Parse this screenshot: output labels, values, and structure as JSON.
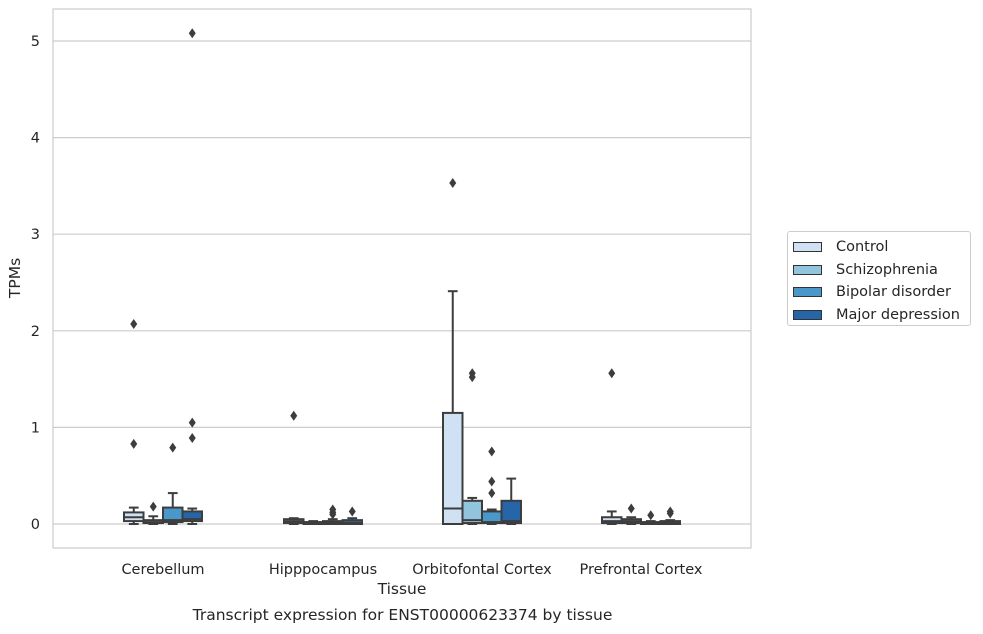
{
  "chart_data": {
    "type": "box",
    "title": "",
    "caption": "Transcript expression for ENST00000623374 by tissue",
    "xlabel": "Tissue",
    "ylabel": "TPMs",
    "ylim": [
      -0.25,
      5.33
    ],
    "yticks": [
      "0",
      "1",
      "2",
      "3",
      "4",
      "5"
    ],
    "grid": "horizontal",
    "legend_placement": "right",
    "categories": [
      "Cerebellum",
      "Hipppocampus",
      "Orbitofontal Cortex",
      "Prefrontal Cortex"
    ],
    "series": [
      {
        "name": "Control",
        "color": "#cfe1f2",
        "boxes": [
          {
            "q1": 0.03,
            "median": 0.07,
            "q3": 0.12,
            "whisker_low": 0.0,
            "whisker_high": 0.17,
            "outliers": [
              2.07,
              0.83
            ]
          },
          {
            "q1": 0.01,
            "median": 0.03,
            "q3": 0.05,
            "whisker_low": 0.0,
            "whisker_high": 0.06,
            "outliers": [
              1.12
            ]
          },
          {
            "q1": 0.0,
            "median": 0.16,
            "q3": 1.15,
            "whisker_low": 0.0,
            "whisker_high": 2.41,
            "outliers": [
              3.53
            ]
          },
          {
            "q1": 0.01,
            "median": 0.03,
            "q3": 0.07,
            "whisker_low": 0.0,
            "whisker_high": 0.13,
            "outliers": [
              1.56
            ]
          }
        ]
      },
      {
        "name": "Schizophrenia",
        "color": "#93c4de",
        "boxes": [
          {
            "q1": 0.01,
            "median": 0.02,
            "q3": 0.04,
            "whisker_low": 0.0,
            "whisker_high": 0.08,
            "outliers": [
              0.18
            ]
          },
          {
            "q1": 0.0,
            "median": 0.01,
            "q3": 0.02,
            "whisker_low": 0.0,
            "whisker_high": 0.03,
            "outliers": []
          },
          {
            "q1": 0.01,
            "median": 0.04,
            "q3": 0.24,
            "whisker_low": 0.0,
            "whisker_high": 0.27,
            "outliers": [
              1.56,
              1.52
            ]
          },
          {
            "q1": 0.01,
            "median": 0.03,
            "q3": 0.05,
            "whisker_low": 0.0,
            "whisker_high": 0.07,
            "outliers": [
              0.16
            ]
          }
        ]
      },
      {
        "name": "Bipolar disorder",
        "color": "#4a98c9",
        "boxes": [
          {
            "q1": 0.02,
            "median": 0.04,
            "q3": 0.17,
            "whisker_low": 0.0,
            "whisker_high": 0.32,
            "outliers": [
              0.79
            ]
          },
          {
            "q1": 0.0,
            "median": 0.01,
            "q3": 0.03,
            "whisker_low": 0.0,
            "whisker_high": 0.05,
            "outliers": [
              0.15,
              0.12,
              0.1
            ]
          },
          {
            "q1": 0.01,
            "median": 0.02,
            "q3": 0.13,
            "whisker_low": 0.0,
            "whisker_high": 0.15,
            "outliers": [
              0.75,
              0.44,
              0.32
            ]
          },
          {
            "q1": 0.0,
            "median": 0.01,
            "q3": 0.02,
            "whisker_low": 0.0,
            "whisker_high": 0.03,
            "outliers": [
              0.09
            ]
          }
        ]
      },
      {
        "name": "Major depression",
        "color": "#2565a8",
        "boxes": [
          {
            "q1": 0.03,
            "median": 0.05,
            "q3": 0.13,
            "whisker_low": 0.0,
            "whisker_high": 0.16,
            "outliers": [
              5.08,
              1.05,
              0.89
            ]
          },
          {
            "q1": 0.0,
            "median": 0.01,
            "q3": 0.04,
            "whisker_low": 0.0,
            "whisker_high": 0.06,
            "outliers": [
              0.13
            ]
          },
          {
            "q1": 0.01,
            "median": 0.03,
            "q3": 0.24,
            "whisker_low": 0.0,
            "whisker_high": 0.47,
            "outliers": []
          },
          {
            "q1": 0.0,
            "median": 0.01,
            "q3": 0.03,
            "whisker_low": 0.0,
            "whisker_high": 0.04,
            "outliers": [
              0.13,
              0.11
            ]
          }
        ]
      }
    ]
  }
}
